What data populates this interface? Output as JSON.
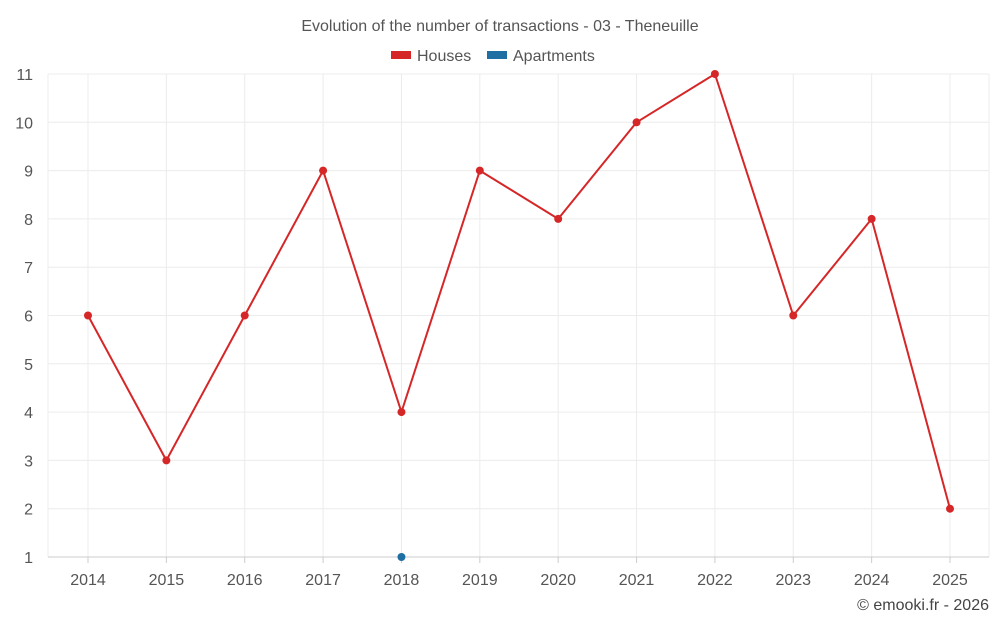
{
  "chart_data": {
    "type": "line",
    "title": "Evolution of the number of transactions - 03 - Theneuille",
    "categories": [
      "2014",
      "2015",
      "2016",
      "2017",
      "2018",
      "2019",
      "2020",
      "2021",
      "2022",
      "2023",
      "2024",
      "2025"
    ],
    "series": [
      {
        "name": "Houses",
        "color": "#d62728",
        "values": [
          6,
          3,
          6,
          9,
          4,
          9,
          8,
          10,
          11,
          6,
          8,
          2
        ]
      },
      {
        "name": "Apartments",
        "color": "#1f6fa3",
        "values": [
          null,
          null,
          null,
          null,
          1,
          null,
          null,
          null,
          null,
          null,
          null,
          null
        ]
      }
    ],
    "ylim": [
      1,
      11
    ],
    "yticks": [
      "1",
      "2",
      "3",
      "4",
      "5",
      "6",
      "7",
      "8",
      "9",
      "10",
      "11"
    ],
    "xlabel": "",
    "ylabel": "",
    "grid": true,
    "legend_position": "top-center"
  },
  "credit": "© emooki.fr - 2026"
}
